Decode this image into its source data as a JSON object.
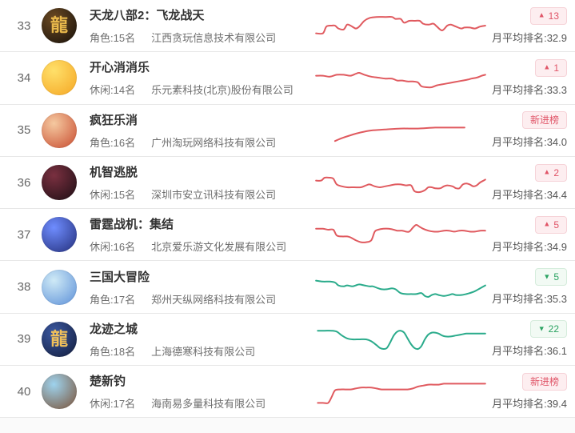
{
  "list_name": "mobile-game-ranking-list",
  "labels": {
    "avg_prefix": "月平均排名:"
  },
  "badge_arrows": {
    "up": "▲",
    "down": "▼"
  },
  "colors": {
    "spark_red": "#e05a5f",
    "spark_green": "#2aab8b",
    "badge_up_text": "#e05467",
    "badge_up_bg": "#fdeef0",
    "badge_down_text": "#2ba362",
    "badge_down_bg": "#f2faf4",
    "separator": "#e7e7e7"
  },
  "rows": [
    {
      "rank": "33",
      "name": "天龙八部2：飞龙战天",
      "category": "角色:15名",
      "company": "江西贪玩信息技术有限公司",
      "badge": {
        "type": "up",
        "text": "13"
      },
      "avg": "32.9",
      "icon": {
        "name": "tianlong-babu2-icon",
        "c1": "#6b4a23",
        "c2": "#17100a",
        "glyph": "龍",
        "glyph_color": "#e8b84b"
      },
      "spark": {
        "color": "red",
        "points": [
          [
            1,
            23
          ],
          [
            5,
            23
          ],
          [
            7,
            16
          ],
          [
            10,
            15
          ],
          [
            12,
            15
          ],
          [
            14,
            18
          ],
          [
            17,
            19
          ],
          [
            19,
            14
          ],
          [
            21,
            15
          ],
          [
            24,
            18
          ],
          [
            26,
            16
          ],
          [
            29,
            10
          ],
          [
            32,
            7
          ],
          [
            36,
            6
          ],
          [
            41,
            6
          ],
          [
            45,
            6
          ],
          [
            47,
            8
          ],
          [
            50,
            8
          ],
          [
            52,
            12
          ],
          [
            55,
            10
          ],
          [
            58,
            10
          ],
          [
            61,
            10
          ],
          [
            63,
            13
          ],
          [
            66,
            14
          ],
          [
            69,
            13
          ],
          [
            71,
            16
          ],
          [
            74,
            20
          ],
          [
            77,
            15
          ],
          [
            79,
            14
          ],
          [
            82,
            16
          ],
          [
            85,
            18
          ],
          [
            87,
            17
          ],
          [
            90,
            17
          ],
          [
            93,
            18
          ],
          [
            96,
            16
          ],
          [
            99,
            15
          ]
        ]
      }
    },
    {
      "rank": "34",
      "name": "开心消消乐",
      "category": "休闲:14名",
      "company": "乐元素科技(北京)股份有限公司",
      "badge": {
        "type": "up",
        "text": "1"
      },
      "avg": "33.3",
      "icon": {
        "name": "kaixin-xiaoxiaole-icon",
        "c1": "#ffe06a",
        "c2": "#f5a623",
        "glyph": "",
        "glyph_color": ""
      },
      "spark": {
        "color": "red",
        "points": [
          [
            1,
            13
          ],
          [
            5,
            13
          ],
          [
            9,
            14
          ],
          [
            13,
            12
          ],
          [
            17,
            12
          ],
          [
            21,
            13
          ],
          [
            24,
            11
          ],
          [
            26,
            10
          ],
          [
            29,
            12
          ],
          [
            33,
            14
          ],
          [
            37,
            15
          ],
          [
            41,
            16
          ],
          [
            45,
            16
          ],
          [
            48,
            18
          ],
          [
            51,
            18
          ],
          [
            54,
            19
          ],
          [
            57,
            19
          ],
          [
            60,
            20
          ],
          [
            62,
            24
          ],
          [
            65,
            25
          ],
          [
            68,
            25
          ],
          [
            71,
            23
          ],
          [
            74,
            22
          ],
          [
            77,
            21
          ],
          [
            80,
            20
          ],
          [
            83,
            19
          ],
          [
            86,
            18
          ],
          [
            89,
            17
          ],
          [
            91,
            16
          ],
          [
            94,
            15
          ],
          [
            97,
            13
          ],
          [
            99,
            12
          ]
        ]
      }
    },
    {
      "rank": "35",
      "name": "疯狂乐消",
      "category": "角色:16名",
      "company": "广州淘玩网络科技有限公司",
      "badge": {
        "type": "new",
        "text": "新进榜"
      },
      "avg": "34.0",
      "icon": {
        "name": "fengkuang-lexiao-icon",
        "c1": "#f5c9a0",
        "c2": "#c84b2f",
        "glyph": "",
        "glyph_color": ""
      },
      "spark": {
        "color": "red",
        "points": [
          [
            12,
            26
          ],
          [
            16,
            23
          ],
          [
            21,
            20
          ],
          [
            27,
            17
          ],
          [
            33,
            15
          ],
          [
            41,
            14
          ],
          [
            50,
            13
          ],
          [
            60,
            13
          ],
          [
            70,
            12
          ],
          [
            80,
            12
          ],
          [
            87,
            12
          ]
        ]
      }
    },
    {
      "rank": "36",
      "name": "机智逃脱",
      "category": "休闲:15名",
      "company": "深圳市安立讯科技有限公司",
      "badge": {
        "type": "up",
        "text": "2"
      },
      "avg": "34.4",
      "icon": {
        "name": "jizhi-taotuo-icon",
        "c1": "#7a3040",
        "c2": "#1d0e14",
        "glyph": "",
        "glyph_color": ""
      },
      "spark": {
        "color": "red",
        "points": [
          [
            1,
            13
          ],
          [
            4,
            13
          ],
          [
            6,
            10
          ],
          [
            9,
            10
          ],
          [
            11,
            11
          ],
          [
            13,
            17
          ],
          [
            16,
            19
          ],
          [
            19,
            20
          ],
          [
            23,
            20
          ],
          [
            27,
            20
          ],
          [
            30,
            18
          ],
          [
            32,
            17
          ],
          [
            35,
            19
          ],
          [
            38,
            20
          ],
          [
            41,
            19
          ],
          [
            44,
            18
          ],
          [
            47,
            17
          ],
          [
            50,
            17
          ],
          [
            53,
            18
          ],
          [
            56,
            18
          ],
          [
            58,
            24
          ],
          [
            61,
            25
          ],
          [
            64,
            23
          ],
          [
            66,
            20
          ],
          [
            68,
            20
          ],
          [
            70,
            21
          ],
          [
            73,
            21
          ],
          [
            75,
            19
          ],
          [
            77,
            18
          ],
          [
            80,
            19
          ],
          [
            82,
            21
          ],
          [
            84,
            21
          ],
          [
            86,
            17
          ],
          [
            88,
            16
          ],
          [
            90,
            17
          ],
          [
            92,
            19
          ],
          [
            94,
            18
          ],
          [
            96,
            15
          ],
          [
            98,
            13
          ],
          [
            99,
            12
          ]
        ]
      }
    },
    {
      "rank": "37",
      "name": "雷霆战机：集结",
      "category": "休闲:16名",
      "company": "北京爱乐游文化发展有限公司",
      "badge": {
        "type": "up",
        "text": "5"
      },
      "avg": "34.9",
      "icon": {
        "name": "leiting-zhanji-icon",
        "c1": "#6f8dff",
        "c2": "#232e7a",
        "glyph": "",
        "glyph_color": ""
      },
      "spark": {
        "color": "red",
        "points": [
          [
            1,
            9
          ],
          [
            5,
            9
          ],
          [
            8,
            10
          ],
          [
            11,
            10
          ],
          [
            13,
            16
          ],
          [
            16,
            17
          ],
          [
            19,
            17
          ],
          [
            21,
            18
          ],
          [
            24,
            21
          ],
          [
            27,
            23
          ],
          [
            30,
            23
          ],
          [
            33,
            21
          ],
          [
            35,
            12
          ],
          [
            37,
            10
          ],
          [
            40,
            9
          ],
          [
            43,
            9
          ],
          [
            46,
            10
          ],
          [
            48,
            11
          ],
          [
            51,
            11
          ],
          [
            53,
            12
          ],
          [
            55,
            12
          ],
          [
            57,
            8
          ],
          [
            59,
            5
          ],
          [
            61,
            7
          ],
          [
            63,
            9
          ],
          [
            66,
            11
          ],
          [
            69,
            12
          ],
          [
            72,
            12
          ],
          [
            75,
            11
          ],
          [
            78,
            11
          ],
          [
            81,
            12
          ],
          [
            84,
            11
          ],
          [
            87,
            11
          ],
          [
            90,
            12
          ],
          [
            93,
            12
          ],
          [
            96,
            11
          ],
          [
            99,
            11
          ]
        ]
      }
    },
    {
      "rank": "38",
      "name": "三国大冒险",
      "category": "角色:17名",
      "company": "郑州天纵网络科技有限公司",
      "badge": {
        "type": "down",
        "text": "5"
      },
      "avg": "35.3",
      "icon": {
        "name": "sanguo-damaoxian-icon",
        "c1": "#cfeaf6",
        "c2": "#5b8fd8",
        "glyph": "",
        "glyph_color": ""
      },
      "spark": {
        "color": "green",
        "points": [
          [
            1,
            8
          ],
          [
            5,
            9
          ],
          [
            9,
            9
          ],
          [
            12,
            10
          ],
          [
            14,
            13
          ],
          [
            17,
            14
          ],
          [
            19,
            13
          ],
          [
            22,
            14
          ],
          [
            24,
            13
          ],
          [
            26,
            12
          ],
          [
            29,
            13
          ],
          [
            32,
            14
          ],
          [
            34,
            14
          ],
          [
            37,
            16
          ],
          [
            39,
            17
          ],
          [
            42,
            17
          ],
          [
            45,
            16
          ],
          [
            47,
            17
          ],
          [
            50,
            21
          ],
          [
            53,
            22
          ],
          [
            56,
            22
          ],
          [
            59,
            22
          ],
          [
            62,
            21
          ],
          [
            64,
            24
          ],
          [
            66,
            25
          ],
          [
            68,
            23
          ],
          [
            70,
            22
          ],
          [
            72,
            23
          ],
          [
            75,
            24
          ],
          [
            78,
            23
          ],
          [
            80,
            22
          ],
          [
            82,
            23
          ],
          [
            85,
            23
          ],
          [
            88,
            22
          ],
          [
            90,
            21
          ],
          [
            93,
            19
          ],
          [
            96,
            16
          ],
          [
            99,
            13
          ]
        ]
      }
    },
    {
      "rank": "39",
      "name": "龙迹之城",
      "category": "角色:18名",
      "company": "上海德寒科技有限公司",
      "badge": {
        "type": "down",
        "text": "22"
      },
      "avg": "36.1",
      "icon": {
        "name": "longji-zhicheng-icon",
        "c1": "#3a57a0",
        "c2": "#121c3a",
        "glyph": "龍",
        "glyph_color": "#f0c05a"
      },
      "spark": {
        "color": "green",
        "points": [
          [
            2,
            6
          ],
          [
            6,
            6
          ],
          [
            10,
            6
          ],
          [
            13,
            7
          ],
          [
            16,
            11
          ],
          [
            19,
            14
          ],
          [
            22,
            15
          ],
          [
            26,
            15
          ],
          [
            30,
            15
          ],
          [
            33,
            17
          ],
          [
            36,
            21
          ],
          [
            38,
            24
          ],
          [
            40,
            25
          ],
          [
            42,
            24
          ],
          [
            44,
            18
          ],
          [
            46,
            11
          ],
          [
            48,
            7
          ],
          [
            50,
            6
          ],
          [
            52,
            8
          ],
          [
            54,
            14
          ],
          [
            56,
            20
          ],
          [
            58,
            24
          ],
          [
            60,
            25
          ],
          [
            62,
            22
          ],
          [
            64,
            15
          ],
          [
            66,
            10
          ],
          [
            68,
            8
          ],
          [
            70,
            8
          ],
          [
            72,
            9
          ],
          [
            74,
            11
          ],
          [
            76,
            12
          ],
          [
            79,
            12
          ],
          [
            82,
            11
          ],
          [
            85,
            10
          ],
          [
            88,
            9
          ],
          [
            91,
            9
          ],
          [
            94,
            9
          ],
          [
            97,
            9
          ],
          [
            99,
            9
          ]
        ]
      }
    },
    {
      "rank": "40",
      "name": "楚新钓",
      "category": "休闲:17名",
      "company": "海南易多量科技有限公司",
      "badge": {
        "type": "new",
        "text": "新进榜"
      },
      "avg": "39.4",
      "icon": {
        "name": "chuxindiao-icon",
        "c1": "#9ed3ee",
        "c2": "#7a5136",
        "glyph": "",
        "glyph_color": ""
      },
      "spark": {
        "color": "red",
        "points": [
          [
            2,
            27
          ],
          [
            5,
            27
          ],
          [
            8,
            27
          ],
          [
            10,
            21
          ],
          [
            12,
            14
          ],
          [
            15,
            13
          ],
          [
            18,
            13
          ],
          [
            21,
            13
          ],
          [
            24,
            12
          ],
          [
            27,
            11
          ],
          [
            30,
            11
          ],
          [
            33,
            11
          ],
          [
            36,
            12
          ],
          [
            39,
            13
          ],
          [
            42,
            13
          ],
          [
            45,
            13
          ],
          [
            48,
            13
          ],
          [
            51,
            13
          ],
          [
            54,
            13
          ],
          [
            57,
            12
          ],
          [
            60,
            10
          ],
          [
            63,
            9
          ],
          [
            66,
            8
          ],
          [
            69,
            8
          ],
          [
            72,
            8
          ],
          [
            75,
            7
          ],
          [
            78,
            7
          ],
          [
            81,
            7
          ],
          [
            84,
            7
          ],
          [
            87,
            7
          ],
          [
            90,
            7
          ],
          [
            93,
            7
          ],
          [
            96,
            7
          ],
          [
            99,
            7
          ]
        ]
      }
    }
  ]
}
